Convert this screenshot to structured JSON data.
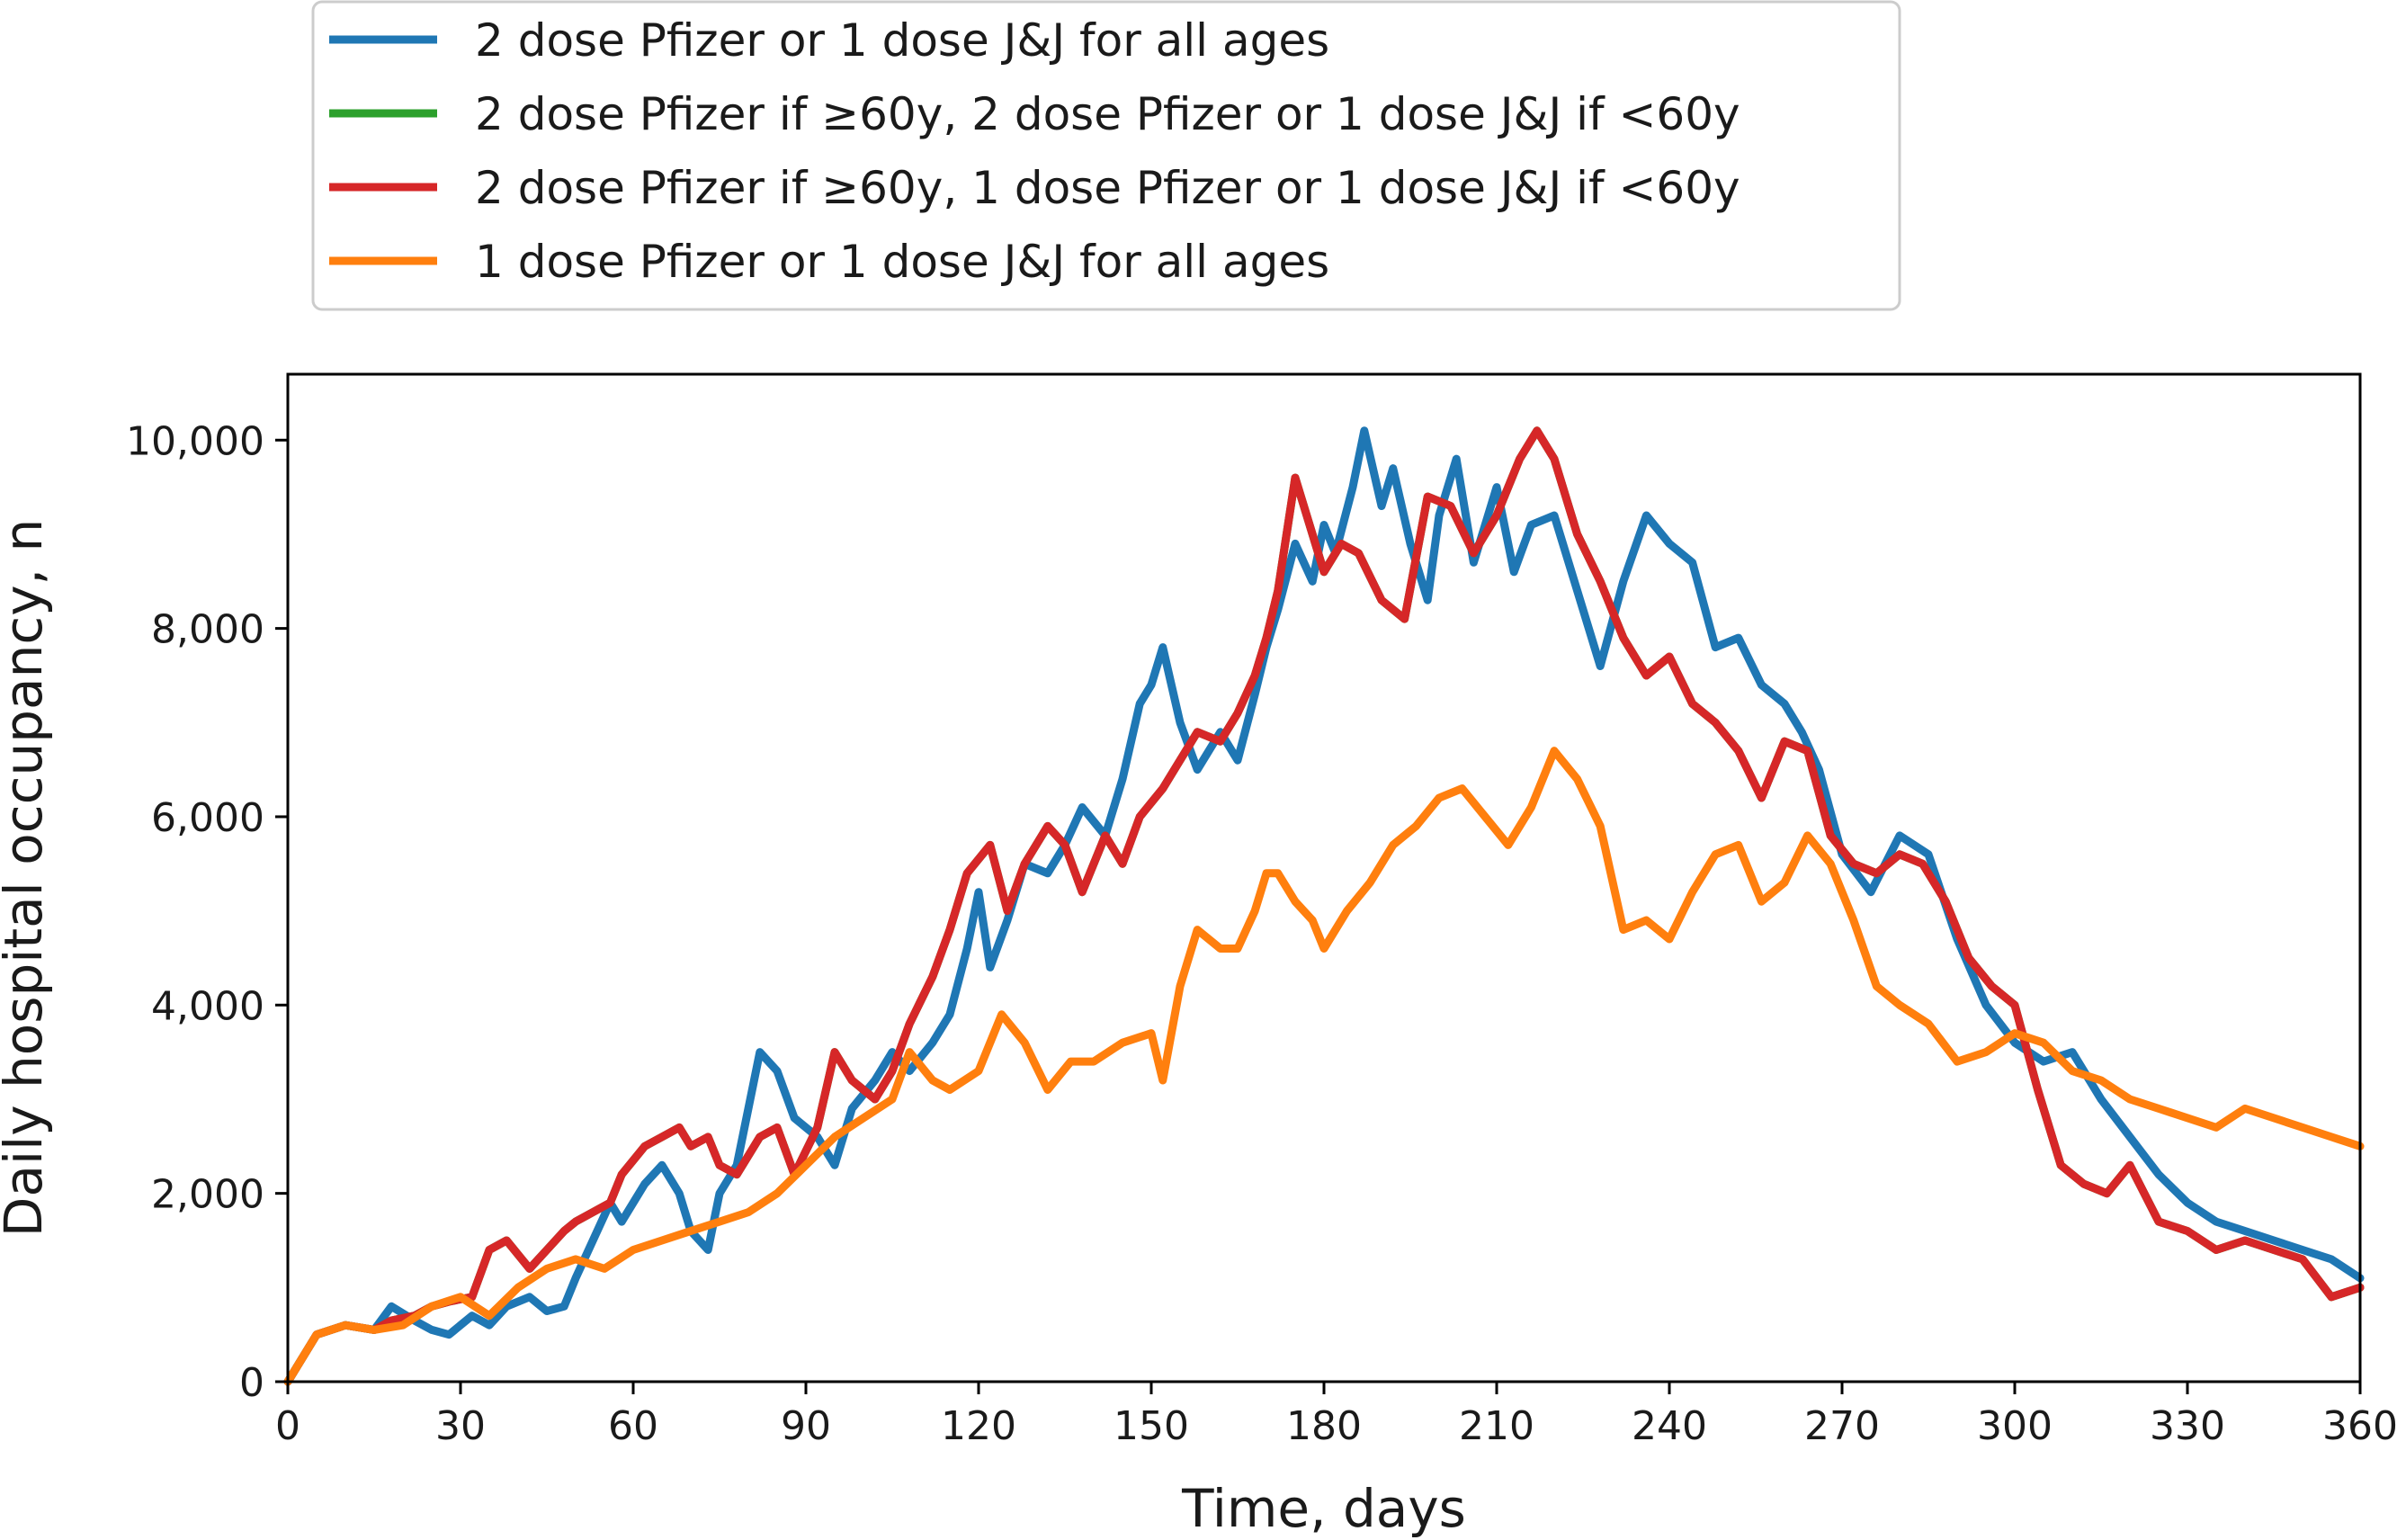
{
  "chart_data": {
    "type": "line",
    "title": "",
    "xlabel": "Time, days",
    "ylabel": "Daily hospital occupancy, n",
    "xlim": [
      0,
      360
    ],
    "ylim": [
      0,
      10700
    ],
    "x_ticks": [
      0,
      30,
      60,
      90,
      120,
      150,
      180,
      210,
      240,
      270,
      300,
      330,
      360
    ],
    "y_ticks": [
      0,
      2000,
      4000,
      6000,
      8000,
      10000
    ],
    "x_tick_labels": [
      "0",
      "30",
      "60",
      "90",
      "120",
      "150",
      "180",
      "210",
      "240",
      "270",
      "300",
      "330",
      "360"
    ],
    "y_tick_labels": [
      "0",
      "2,000",
      "4,000",
      "6,000",
      "8,000",
      "10,000"
    ],
    "grid": false,
    "legend_position": "top-outside",
    "series": [
      {
        "name": "2 dose Pfizer or 1 dose J&J for all ages",
        "color": "#1f77b4",
        "x": [
          0,
          5,
          10,
          15,
          18,
          22,
          25,
          28,
          32,
          35,
          38,
          42,
          45,
          48,
          50,
          53,
          56,
          58,
          62,
          65,
          68,
          70,
          73,
          75,
          78,
          82,
          85,
          88,
          92,
          95,
          98,
          102,
          105,
          108,
          112,
          115,
          118,
          120,
          122,
          125,
          128,
          132,
          135,
          138,
          142,
          145,
          148,
          150,
          152,
          155,
          158,
          162,
          165,
          168,
          170,
          172,
          175,
          178,
          180,
          182,
          185,
          187,
          190,
          192,
          195,
          198,
          200,
          203,
          206,
          210,
          213,
          216,
          220,
          224,
          228,
          232,
          236,
          240,
          244,
          248,
          252,
          256,
          260,
          263,
          266,
          270,
          275,
          280,
          285,
          290,
          295,
          300,
          305,
          310,
          315,
          320,
          325,
          330,
          335,
          340,
          345,
          350,
          355,
          360
        ],
        "y": [
          0,
          500,
          600,
          550,
          800,
          650,
          550,
          500,
          700,
          600,
          800,
          900,
          750,
          800,
          1100,
          1500,
          1900,
          1700,
          2100,
          2300,
          2000,
          1600,
          1400,
          2000,
          2300,
          3500,
          3300,
          2800,
          2600,
          2300,
          2900,
          3200,
          3500,
          3300,
          3600,
          3900,
          4600,
          5200,
          4400,
          4900,
          5500,
          5400,
          5700,
          6100,
          5800,
          6400,
          7200,
          7400,
          7800,
          7000,
          6500,
          6900,
          6600,
          7300,
          7800,
          8200,
          8900,
          8500,
          9100,
          8800,
          9500,
          10100,
          9300,
          9700,
          8900,
          8300,
          9200,
          9800,
          8700,
          9500,
          8600,
          9100,
          9200,
          8400,
          7600,
          8500,
          9200,
          8900,
          8700,
          7800,
          7900,
          7400,
          7200,
          6900,
          6500,
          5600,
          5200,
          5800,
          5600,
          4700,
          4000,
          3600,
          3400,
          3500,
          3000,
          2600,
          2200,
          1900,
          1700,
          1600,
          1500,
          1400,
          1300,
          1100
        ]
      },
      {
        "name": "2 dose Pfizer if ≥60y, 2 dose Pfizer or 1 dose J&J if <60y",
        "color": "#2ca02c",
        "x": [
          0,
          5,
          10,
          15,
          18,
          22,
          25,
          28,
          32,
          35,
          38,
          42,
          45,
          48,
          50,
          53,
          56,
          58,
          62,
          65,
          68,
          70,
          73,
          75,
          78,
          82,
          85,
          88,
          92,
          95,
          98,
          102,
          105,
          108,
          112,
          115,
          118,
          122,
          125,
          128,
          132,
          135,
          138,
          142,
          145,
          148,
          152,
          155,
          158,
          162,
          165,
          168,
          170,
          172,
          175,
          178,
          180,
          183,
          186,
          190,
          194,
          198,
          202,
          206,
          210,
          214,
          217,
          220,
          224,
          228,
          232,
          236,
          240,
          244,
          248,
          252,
          256,
          260,
          264,
          268,
          272,
          276,
          280,
          284,
          288,
          292,
          296,
          300,
          304,
          308,
          312,
          316,
          320,
          325,
          330,
          335,
          340,
          345,
          350,
          355,
          360
        ],
        "y": [
          0,
          500,
          600,
          550,
          650,
          700,
          800,
          850,
          900,
          1400,
          1500,
          1200,
          1400,
          1600,
          1700,
          1800,
          1900,
          2200,
          2500,
          2600,
          2700,
          2500,
          2600,
          2300,
          2200,
          2600,
          2700,
          2200,
          2700,
          3500,
          3200,
          3000,
          3300,
          3800,
          4300,
          4800,
          5400,
          5700,
          5000,
          5500,
          5900,
          5700,
          5200,
          5800,
          5500,
          6000,
          6300,
          6600,
          6900,
          6800,
          7100,
          7500,
          7900,
          8400,
          9600,
          9000,
          8600,
          8900,
          8800,
          8300,
          8100,
          9400,
          9300,
          8800,
          9200,
          9800,
          10100,
          9800,
          9000,
          8500,
          7900,
          7500,
          7700,
          7200,
          7000,
          6700,
          6200,
          6800,
          6700,
          5800,
          5500,
          5400,
          5600,
          5500,
          5100,
          4500,
          4200,
          4000,
          3100,
          2300,
          2100,
          2000,
          2300,
          1700,
          1600,
          1400,
          1500,
          1400,
          1300,
          900,
          1000
        ]
      },
      {
        "name": "2 dose Pfizer if ≥60y, 1 dose Pfizer or 1 dose J&J if <60y",
        "color": "#d62728",
        "x": [
          0,
          5,
          10,
          15,
          18,
          22,
          25,
          28,
          32,
          35,
          38,
          42,
          45,
          48,
          50,
          53,
          56,
          58,
          62,
          65,
          68,
          70,
          73,
          75,
          78,
          82,
          85,
          88,
          92,
          95,
          98,
          102,
          105,
          108,
          112,
          115,
          118,
          122,
          125,
          128,
          132,
          135,
          138,
          142,
          145,
          148,
          152,
          155,
          158,
          162,
          165,
          168,
          170,
          172,
          175,
          178,
          180,
          183,
          186,
          190,
          194,
          198,
          202,
          206,
          210,
          214,
          217,
          220,
          224,
          228,
          232,
          236,
          240,
          244,
          248,
          252,
          256,
          260,
          264,
          268,
          272,
          276,
          280,
          284,
          288,
          292,
          296,
          300,
          304,
          308,
          312,
          316,
          320,
          325,
          330,
          335,
          340,
          345,
          350,
          355,
          360
        ],
        "y": [
          0,
          500,
          600,
          550,
          650,
          700,
          800,
          850,
          900,
          1400,
          1500,
          1200,
          1400,
          1600,
          1700,
          1800,
          1900,
          2200,
          2500,
          2600,
          2700,
          2500,
          2600,
          2300,
          2200,
          2600,
          2700,
          2200,
          2700,
          3500,
          3200,
          3000,
          3300,
          3800,
          4300,
          4800,
          5400,
          5700,
          5000,
          5500,
          5900,
          5700,
          5200,
          5800,
          5500,
          6000,
          6300,
          6600,
          6900,
          6800,
          7100,
          7500,
          7900,
          8400,
          9600,
          9000,
          8600,
          8900,
          8800,
          8300,
          8100,
          9400,
          9300,
          8800,
          9200,
          9800,
          10100,
          9800,
          9000,
          8500,
          7900,
          7500,
          7700,
          7200,
          7000,
          6700,
          6200,
          6800,
          6700,
          5800,
          5500,
          5400,
          5600,
          5500,
          5100,
          4500,
          4200,
          4000,
          3100,
          2300,
          2100,
          2000,
          2300,
          1700,
          1600,
          1400,
          1500,
          1400,
          1300,
          900,
          1000
        ]
      },
      {
        "name": "1 dose Pfizer or 1 dose J&J for all ages",
        "color": "#ff7f0e",
        "x": [
          0,
          5,
          10,
          15,
          20,
          25,
          30,
          35,
          40,
          45,
          50,
          55,
          60,
          65,
          70,
          75,
          80,
          85,
          90,
          95,
          100,
          105,
          108,
          112,
          115,
          120,
          124,
          128,
          132,
          136,
          140,
          145,
          150,
          152,
          155,
          158,
          162,
          165,
          168,
          170,
          172,
          175,
          178,
          180,
          184,
          188,
          192,
          196,
          200,
          204,
          208,
          212,
          216,
          220,
          224,
          228,
          232,
          236,
          240,
          244,
          248,
          252,
          256,
          260,
          264,
          268,
          272,
          276,
          280,
          285,
          290,
          295,
          300,
          305,
          310,
          315,
          320,
          325,
          330,
          335,
          340,
          345,
          350,
          355,
          360
        ],
        "y": [
          0,
          500,
          600,
          550,
          600,
          800,
          900,
          700,
          1000,
          1200,
          1300,
          1200,
          1400,
          1500,
          1600,
          1700,
          1800,
          2000,
          2300,
          2600,
          2800,
          3000,
          3500,
          3200,
          3100,
          3300,
          3900,
          3600,
          3100,
          3400,
          3400,
          3600,
          3700,
          3200,
          4200,
          4800,
          4600,
          4600,
          5000,
          5400,
          5400,
          5100,
          4900,
          4600,
          5000,
          5300,
          5700,
          5900,
          6200,
          6300,
          6000,
          5700,
          6100,
          6700,
          6400,
          5900,
          4800,
          4900,
          4700,
          5200,
          5600,
          5700,
          5100,
          5300,
          5800,
          5500,
          4900,
          4200,
          4000,
          3800,
          3400,
          3500,
          3700,
          3600,
          3300,
          3200,
          3000,
          2900,
          2800,
          2700,
          2900,
          2800,
          2700,
          2600,
          2500
        ]
      }
    ]
  }
}
